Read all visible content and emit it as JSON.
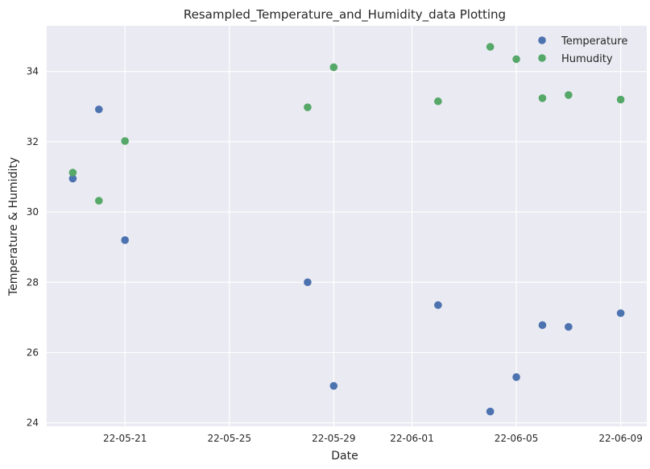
{
  "chart_data": {
    "type": "scatter",
    "title": "Resampled_Temperature_and_Humidity_data Plotting",
    "xlabel": "Date",
    "ylabel": "Temperature & Humidity",
    "x_ticks": [
      "22-05-21",
      "22-05-25",
      "22-05-29",
      "22-06-01",
      "22-06-05",
      "22-06-09"
    ],
    "y_ticks": [
      24,
      26,
      28,
      30,
      32,
      34
    ],
    "xlim": [
      "2022-05-18",
      "2022-06-10"
    ],
    "ylim": [
      23.9,
      35.3
    ],
    "grid": true,
    "legend_position": "top-right",
    "series": [
      {
        "name": "Temperature",
        "color": "#4c72b0",
        "points": [
          {
            "x": "2022-05-19",
            "y": 30.95
          },
          {
            "x": "2022-05-20",
            "y": 32.92
          },
          {
            "x": "2022-05-21",
            "y": 29.2
          },
          {
            "x": "2022-05-28",
            "y": 28.0
          },
          {
            "x": "2022-05-29",
            "y": 25.05
          },
          {
            "x": "2022-06-02",
            "y": 27.35
          },
          {
            "x": "2022-06-04",
            "y": 24.32
          },
          {
            "x": "2022-06-05",
            "y": 25.3
          },
          {
            "x": "2022-06-06",
            "y": 26.78
          },
          {
            "x": "2022-06-07",
            "y": 26.73
          },
          {
            "x": "2022-06-09",
            "y": 27.12
          }
        ]
      },
      {
        "name": "Humudity",
        "color": "#55a868",
        "points": [
          {
            "x": "2022-05-19",
            "y": 31.12
          },
          {
            "x": "2022-05-20",
            "y": 30.32
          },
          {
            "x": "2022-05-21",
            "y": 32.02
          },
          {
            "x": "2022-05-28",
            "y": 32.98
          },
          {
            "x": "2022-05-29",
            "y": 34.12
          },
          {
            "x": "2022-06-02",
            "y": 33.15
          },
          {
            "x": "2022-06-04",
            "y": 34.7
          },
          {
            "x": "2022-06-05",
            "y": 34.35
          },
          {
            "x": "2022-06-06",
            "y": 33.24
          },
          {
            "x": "2022-06-07",
            "y": 33.33
          },
          {
            "x": "2022-06-09",
            "y": 33.2
          }
        ]
      }
    ]
  }
}
